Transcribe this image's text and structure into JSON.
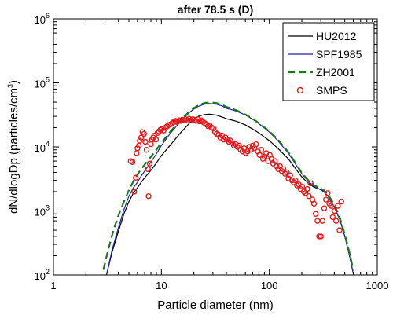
{
  "chart_data": {
    "type": "line",
    "title": "after 78.5 s (D)",
    "xlabel": "Particle diameter (nm)",
    "ylabel": "dN/dlogDp (particles/cm",
    "ylabel_sup": "3",
    "ylabel_close": ")",
    "xscale": "log",
    "yscale": "log",
    "xlim": [
      1,
      1000
    ],
    "ylim": [
      100,
      1000000
    ],
    "xticks": [
      {
        "value": 1,
        "label": "1"
      },
      {
        "value": 10,
        "label": "10"
      },
      {
        "value": 100,
        "label": "100"
      },
      {
        "value": 1000,
        "label": "1000"
      }
    ],
    "yticks": [
      {
        "value": 100,
        "base": "10",
        "exp": "2"
      },
      {
        "value": 1000,
        "base": "10",
        "exp": "3"
      },
      {
        "value": 10000,
        "base": "10",
        "exp": "4"
      },
      {
        "value": 100000,
        "base": "10",
        "exp": "5"
      },
      {
        "value": 1000000,
        "base": "10",
        "exp": "6"
      }
    ],
    "grid": false,
    "legend_position": "top-right",
    "series": [
      {
        "name": "HU2012",
        "style": "solid",
        "color": "#000000",
        "points": [
          [
            3.1,
            100
          ],
          [
            3.5,
            230
          ],
          [
            4,
            480
          ],
          [
            4.5,
            900
          ],
          [
            5,
            1400
          ],
          [
            5.5,
            1900
          ],
          [
            6,
            2300
          ],
          [
            6.5,
            2800
          ],
          [
            7,
            3300
          ],
          [
            8,
            4300
          ],
          [
            9,
            5600
          ],
          [
            10,
            7300
          ],
          [
            12,
            10500
          ],
          [
            15,
            16500
          ],
          [
            18,
            23000
          ],
          [
            20,
            27000
          ],
          [
            22,
            30000
          ],
          [
            25,
            32000
          ],
          [
            28,
            32500
          ],
          [
            32,
            31500
          ],
          [
            36,
            29500
          ],
          [
            38,
            28500
          ],
          [
            40,
            27500
          ],
          [
            44,
            26500
          ],
          [
            50,
            25000
          ],
          [
            60,
            22000
          ],
          [
            70,
            19000
          ],
          [
            80,
            16500
          ],
          [
            100,
            12500
          ],
          [
            120,
            9500
          ],
          [
            150,
            6500
          ],
          [
            180,
            4300
          ],
          [
            200,
            3400
          ],
          [
            230,
            2700
          ],
          [
            260,
            2350
          ],
          [
            290,
            2200
          ],
          [
            320,
            2000
          ],
          [
            350,
            1700
          ],
          [
            400,
            1150
          ],
          [
            450,
            730
          ],
          [
            500,
            400
          ],
          [
            550,
            210
          ],
          [
            600,
            105
          ]
        ]
      },
      {
        "name": "SPF1985",
        "style": "solid",
        "color": "#1f1fb4",
        "points": [
          [
            3.1,
            100
          ],
          [
            3.5,
            250
          ],
          [
            4,
            550
          ],
          [
            4.5,
            1050
          ],
          [
            5,
            1700
          ],
          [
            5.5,
            2300
          ],
          [
            6,
            2800
          ],
          [
            6.5,
            3500
          ],
          [
            7,
            4200
          ],
          [
            8,
            5800
          ],
          [
            9,
            7800
          ],
          [
            10,
            10500
          ],
          [
            12,
            16000
          ],
          [
            15,
            25000
          ],
          [
            18,
            34000
          ],
          [
            20,
            39000
          ],
          [
            22,
            43000
          ],
          [
            25,
            46500
          ],
          [
            28,
            47500
          ],
          [
            32,
            46500
          ],
          [
            36,
            44000
          ],
          [
            38,
            42000
          ],
          [
            40,
            40000
          ],
          [
            44,
            38500
          ],
          [
            50,
            36000
          ],
          [
            60,
            31500
          ],
          [
            70,
            27000
          ],
          [
            80,
            23000
          ],
          [
            100,
            17000
          ],
          [
            120,
            12500
          ],
          [
            150,
            8000
          ],
          [
            180,
            5000
          ],
          [
            200,
            3800
          ],
          [
            230,
            2900
          ],
          [
            260,
            2400
          ],
          [
            290,
            2200
          ],
          [
            320,
            2000
          ],
          [
            350,
            1700
          ],
          [
            400,
            1150
          ],
          [
            450,
            730
          ],
          [
            500,
            400
          ],
          [
            550,
            210
          ],
          [
            600,
            105
          ]
        ]
      },
      {
        "name": "ZH2001",
        "style": "dashed",
        "color": "#1a7a1a",
        "points": [
          [
            2.9,
            120
          ],
          [
            3.2,
            240
          ],
          [
            3.6,
            500
          ],
          [
            4,
            850
          ],
          [
            4.5,
            1400
          ],
          [
            5,
            2100
          ],
          [
            5.5,
            2900
          ],
          [
            6,
            3700
          ],
          [
            6.5,
            4500
          ],
          [
            7,
            5300
          ],
          [
            8,
            7000
          ],
          [
            9,
            9000
          ],
          [
            10,
            11500
          ],
          [
            12,
            17000
          ],
          [
            15,
            26000
          ],
          [
            18,
            35000
          ],
          [
            20,
            40500
          ],
          [
            22,
            44500
          ],
          [
            25,
            48500
          ],
          [
            28,
            49500
          ],
          [
            32,
            48500
          ],
          [
            36,
            46000
          ],
          [
            38,
            44000
          ],
          [
            40,
            42000
          ],
          [
            44,
            40000
          ],
          [
            50,
            37000
          ],
          [
            60,
            32000
          ],
          [
            70,
            27500
          ],
          [
            80,
            23500
          ],
          [
            100,
            17500
          ],
          [
            120,
            13000
          ],
          [
            150,
            8300
          ],
          [
            180,
            5200
          ],
          [
            200,
            3900
          ],
          [
            230,
            3000
          ],
          [
            260,
            2500
          ],
          [
            290,
            2300
          ],
          [
            320,
            2100
          ],
          [
            350,
            1800
          ],
          [
            400,
            1250
          ],
          [
            450,
            780
          ],
          [
            500,
            430
          ],
          [
            550,
            230
          ],
          [
            600,
            120
          ]
        ]
      },
      {
        "name": "SMPS",
        "style": "markers",
        "color": "#e31a1c",
        "points": [
          [
            5.2,
            6000
          ],
          [
            5.4,
            5800
          ],
          [
            5.6,
            2000
          ],
          [
            5.8,
            3300
          ],
          [
            5.9,
            8000
          ],
          [
            6.0,
            9500
          ],
          [
            6.2,
            10500
          ],
          [
            6.3,
            12500
          ],
          [
            6.5,
            14000
          ],
          [
            6.7,
            17000
          ],
          [
            6.9,
            16000
          ],
          [
            7.1,
            12000
          ],
          [
            7.3,
            9000
          ],
          [
            7.5,
            4500
          ],
          [
            7.6,
            1700
          ],
          [
            7.8,
            5500
          ],
          [
            8.0,
            11000
          ],
          [
            8.2,
            13000
          ],
          [
            8.4,
            14000
          ],
          [
            8.6,
            15000
          ],
          [
            8.9,
            13000
          ],
          [
            9.2,
            16500
          ],
          [
            9.5,
            17500
          ],
          [
            9.8,
            18500
          ],
          [
            10.1,
            19000
          ],
          [
            10.5,
            18000
          ],
          [
            10.9,
            20000
          ],
          [
            11.3,
            21000
          ],
          [
            11.7,
            22000
          ],
          [
            12.1,
            22500
          ],
          [
            12.6,
            23500
          ],
          [
            13.0,
            24500
          ],
          [
            13.5,
            25500
          ],
          [
            14.0,
            24500
          ],
          [
            14.6,
            26000
          ],
          [
            15.1,
            25500
          ],
          [
            15.7,
            26500
          ],
          [
            16.3,
            26000
          ],
          [
            16.8,
            27000
          ],
          [
            17.5,
            26000
          ],
          [
            18.1,
            27500
          ],
          [
            18.8,
            26000
          ],
          [
            19.5,
            27000
          ],
          [
            20.2,
            26500
          ],
          [
            21.0,
            25500
          ],
          [
            21.8,
            27000
          ],
          [
            22.6,
            25000
          ],
          [
            23.4,
            26000
          ],
          [
            24.3,
            24500
          ],
          [
            25.2,
            23500
          ],
          [
            26.1,
            22500
          ],
          [
            27.1,
            21000
          ],
          [
            28.1,
            21500
          ],
          [
            29.2,
            20000
          ],
          [
            30.3,
            19500
          ],
          [
            31.4,
            17000
          ],
          [
            32.6,
            16000
          ],
          [
            33.8,
            15500
          ],
          [
            35.1,
            14000
          ],
          [
            36.4,
            15000
          ],
          [
            37.8,
            13000
          ],
          [
            39.2,
            14000
          ],
          [
            40.6,
            13000
          ],
          [
            42.1,
            12000
          ],
          [
            43.7,
            12500
          ],
          [
            45.3,
            11500
          ],
          [
            47.0,
            10500
          ],
          [
            48.7,
            11000
          ],
          [
            50.5,
            10000
          ],
          [
            52.4,
            10500
          ],
          [
            54.3,
            9000
          ],
          [
            56.3,
            8500
          ],
          [
            58.4,
            9500
          ],
          [
            60.6,
            8000
          ],
          [
            62.8,
            8500
          ],
          [
            65.2,
            10000
          ],
          [
            67.6,
            9000
          ],
          [
            70.1,
            10500
          ],
          [
            72.7,
            9500
          ],
          [
            75.4,
            11000
          ],
          [
            78.2,
            8500
          ],
          [
            81.1,
            7500
          ],
          [
            84.1,
            9000
          ],
          [
            87.2,
            6500
          ],
          [
            90.4,
            7000
          ],
          [
            93.8,
            8000
          ],
          [
            97.3,
            6000
          ],
          [
            100.9,
            7500
          ],
          [
            104.6,
            6500
          ],
          [
            108.5,
            5500
          ],
          [
            112.5,
            6000
          ],
          [
            116.7,
            5000
          ],
          [
            121.0,
            4500
          ],
          [
            125.5,
            5000
          ],
          [
            130.1,
            4200
          ],
          [
            134.9,
            4500
          ],
          [
            139.9,
            3800
          ],
          [
            145.1,
            4000
          ],
          [
            150.5,
            3200
          ],
          [
            156.1,
            3600
          ],
          [
            161.9,
            3000
          ],
          [
            167.9,
            2800
          ],
          [
            174.1,
            3000
          ],
          [
            180.6,
            2500
          ],
          [
            187.3,
            2600
          ],
          [
            194.2,
            2200
          ],
          [
            201.4,
            2400
          ],
          [
            208.8,
            2000
          ],
          [
            216.5,
            1900
          ],
          [
            224.5,
            2200
          ],
          [
            232.8,
            1700
          ],
          [
            241.4,
            2700
          ],
          [
            250.3,
            1500
          ],
          [
            259.5,
            1300
          ],
          [
            269.1,
            900
          ],
          [
            279.0,
            700
          ],
          [
            289.3,
            400
          ],
          [
            300.0,
            400
          ],
          [
            311.1,
            700
          ],
          [
            322.6,
            1100
          ],
          [
            334.5,
            1500
          ],
          [
            346.8,
            1900
          ],
          [
            359.6,
            1300
          ],
          [
            372.9,
            1200
          ],
          [
            386.7,
            800
          ],
          [
            401.0,
            1000
          ],
          [
            415.8,
            700
          ],
          [
            431.2,
            1200
          ],
          [
            447.1,
            500
          ],
          [
            463.6,
            1400
          ]
        ]
      }
    ]
  }
}
